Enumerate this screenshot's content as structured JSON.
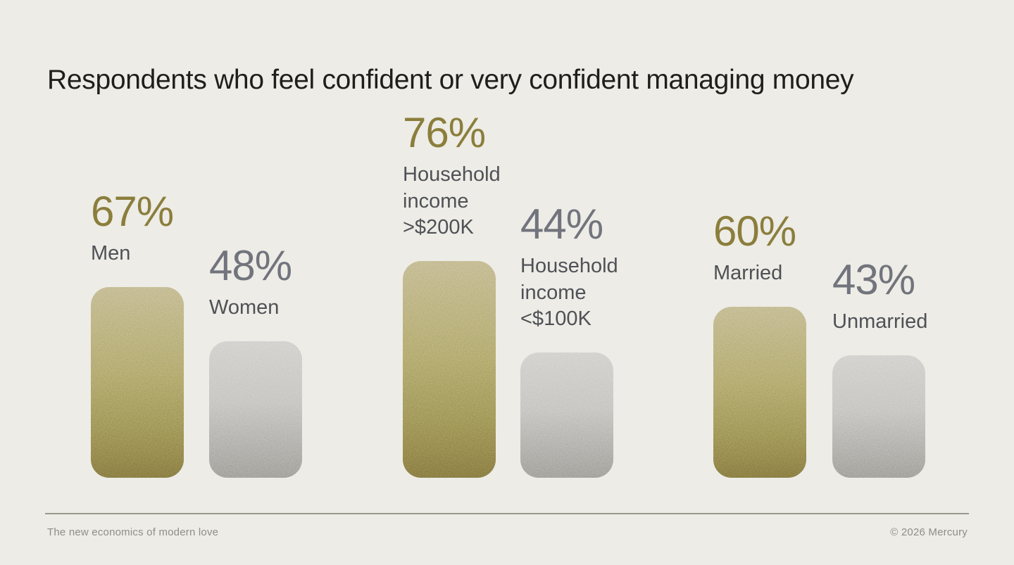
{
  "header": {
    "title": "Respondents who feel confident or very confident managing money"
  },
  "footer": {
    "left_text": "The new economics of modern love",
    "right_text": "© 2026 Mercury"
  },
  "chart_data": {
    "type": "bar",
    "title": "Respondents who feel confident or very confident managing money",
    "unit": "%",
    "ylim": [
      0,
      100
    ],
    "grid": false,
    "axes_shown": false,
    "value_labels_shown": true,
    "legend": "none",
    "categories": [
      "Men",
      "Women",
      "Household income >$200K",
      "Household income <$100K",
      "Married",
      "Unmarried"
    ],
    "values": [
      67,
      48,
      76,
      44,
      60,
      43
    ],
    "groups": [
      {
        "bars": [
          {
            "value": 67,
            "display": "67%",
            "label": "Men",
            "label_lines": [
              "Men"
            ],
            "style": "gold"
          },
          {
            "value": 48,
            "display": "48%",
            "label": "Women",
            "label_lines": [
              "Women"
            ],
            "style": "silver"
          }
        ]
      },
      {
        "bars": [
          {
            "value": 76,
            "display": "76%",
            "label": "Household income >$200K",
            "label_lines": [
              "Household",
              "income",
              ">$200K"
            ],
            "style": "gold"
          },
          {
            "value": 44,
            "display": "44%",
            "label": "Household income <$100K",
            "label_lines": [
              "Household",
              "income",
              "<$100K"
            ],
            "style": "silver"
          }
        ]
      },
      {
        "bars": [
          {
            "value": 60,
            "display": "60%",
            "label": "Married",
            "label_lines": [
              "Married"
            ],
            "style": "gold"
          },
          {
            "value": 43,
            "display": "43%",
            "label": "Unmarried",
            "label_lines": [
              "Unmarried"
            ],
            "style": "silver"
          }
        ]
      }
    ],
    "colors": {
      "background": "#edece6",
      "gold_bar_top": "#b7ac7c",
      "gold_bar_bottom": "#746a39",
      "silver_bar_top": "#c9c7c3",
      "silver_bar_bottom": "#8d8c85",
      "gold_value_text": "#8b7e3c",
      "silver_value_text": "#72747d",
      "label_text": "#4f5156",
      "title_text": "#1f1e1b",
      "footer_text": "#8e8d87"
    }
  }
}
